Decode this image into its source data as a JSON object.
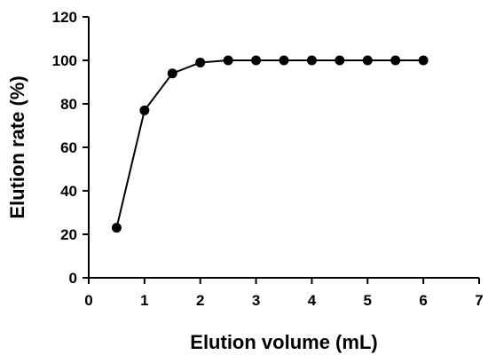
{
  "chart_data": {
    "type": "line",
    "title": "",
    "xlabel": "Elution volume (mL)",
    "ylabel": "Elution rate (%)",
    "xlim": [
      0,
      7
    ],
    "ylim": [
      0,
      120
    ],
    "x_ticks": [
      0,
      1,
      2,
      3,
      4,
      5,
      6,
      7
    ],
    "y_ticks": [
      0,
      20,
      40,
      60,
      80,
      100,
      120
    ],
    "grid": false,
    "legend": "none",
    "series": [
      {
        "x": [
          0.5,
          1.0,
          1.5,
          2.0,
          2.5,
          3.0,
          3.5,
          4.0,
          4.5,
          5.0,
          5.5,
          6.0
        ],
        "y": [
          23,
          77,
          94,
          99,
          100,
          100,
          100,
          100,
          100,
          100,
          100,
          100
        ],
        "marker": "filled-circle",
        "color": "#000000"
      }
    ]
  }
}
